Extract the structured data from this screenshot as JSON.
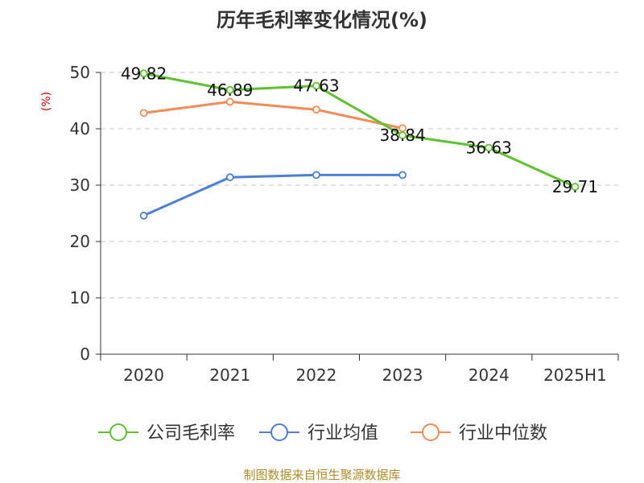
{
  "chart_data": {
    "type": "line",
    "title": "历年毛利率变化情况(%)",
    "ylabel": "(%)",
    "xlabel": "",
    "categories": [
      "2020",
      "2021",
      "2022",
      "2023",
      "2024",
      "2025H1"
    ],
    "ylim": [
      0,
      50
    ],
    "yticks": [
      0,
      10,
      20,
      30,
      40,
      50
    ],
    "grid": true,
    "legend_position": "bottom",
    "series": [
      {
        "name": "公司毛利率",
        "color": "#5ec12e",
        "values": [
          49.82,
          46.89,
          47.63,
          38.84,
          36.63,
          29.71
        ],
        "labels": [
          "49.82",
          "46.89",
          "47.63",
          "38.84",
          "36.63",
          "29.71"
        ]
      },
      {
        "name": "行业均值",
        "color": "#4e7fd8",
        "values": [
          24.6,
          31.4,
          31.8,
          31.8,
          null,
          null
        ]
      },
      {
        "name": "行业中位数",
        "color": "#f48a55",
        "values": [
          42.8,
          44.8,
          43.4,
          40.1,
          null,
          null
        ]
      }
    ]
  },
  "colors": {
    "ylabel": "#cc0000",
    "source": "#b08a2a",
    "grid": "#c8c8c8",
    "axis": "#333333"
  },
  "source_text": "制图数据来自恒生聚源数据库"
}
